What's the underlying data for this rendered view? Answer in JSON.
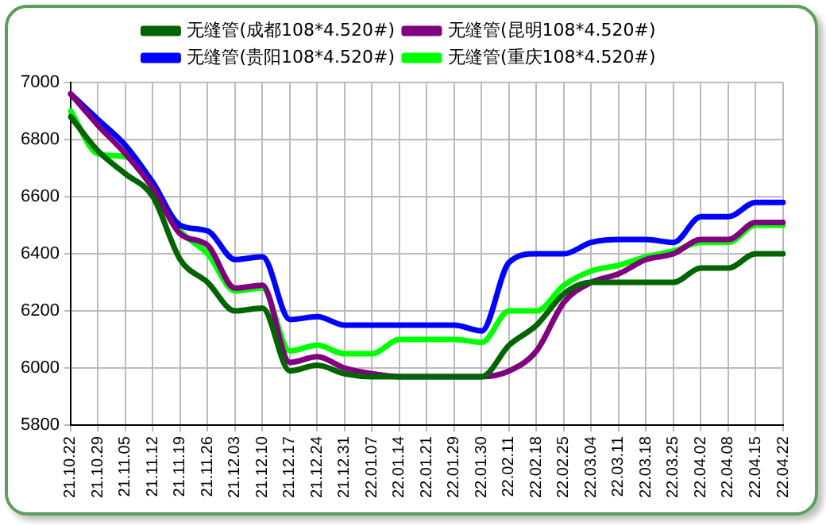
{
  "chart_data": {
    "type": "line",
    "categories": [
      "21.10.22",
      "21.10.29",
      "21.11.05",
      "21.11.12",
      "21.11.19",
      "21.11.26",
      "21.12.03",
      "21.12.10",
      "21.12.17",
      "21.12.24",
      "21.12.31",
      "22.01.07",
      "22.01.14",
      "22.01.21",
      "22.01.29",
      "22.01.30",
      "22.02.11",
      "22.02.18",
      "22.02.25",
      "22.03.04",
      "22.03.11",
      "22.03.18",
      "22.03.25",
      "22.04.02",
      "22.04.08",
      "22.04.15",
      "22.04.22"
    ],
    "series": [
      {
        "name": "无缝管(成都108*4.520#)",
        "color": "#006400",
        "values": [
          6880,
          6760,
          6680,
          6600,
          6380,
          6300,
          6200,
          6210,
          5990,
          6010,
          5980,
          5970,
          5970,
          5970,
          5970,
          5970,
          6080,
          6150,
          6260,
          6300,
          6300,
          6300,
          6300,
          6350,
          6350,
          6400,
          6400
        ]
      },
      {
        "name": "无缝管(昆明108*4.520#)",
        "color": "#800080",
        "values": [
          6960,
          6850,
          6750,
          6630,
          6470,
          6430,
          6280,
          6290,
          6020,
          6040,
          6000,
          5980,
          5970,
          5970,
          5970,
          5970,
          5990,
          6060,
          6230,
          6300,
          6330,
          6380,
          6400,
          6450,
          6450,
          6510,
          6510
        ]
      },
      {
        "name": "无缝管(贵阳108*4.520#)",
        "color": "#0000ff",
        "values": [
          6960,
          6870,
          6780,
          6650,
          6500,
          6480,
          6380,
          6390,
          6170,
          6180,
          6150,
          6150,
          6150,
          6150,
          6150,
          6130,
          6370,
          6400,
          6400,
          6440,
          6450,
          6450,
          6440,
          6530,
          6530,
          6580,
          6580
        ]
      },
      {
        "name": "无缝管(重庆108*4.520#)",
        "color": "#00ff00",
        "values": [
          6900,
          6750,
          6740,
          6630,
          6480,
          6400,
          6270,
          6280,
          6060,
          6080,
          6050,
          6050,
          6100,
          6100,
          6100,
          6090,
          6200,
          6200,
          6290,
          6340,
          6360,
          6390,
          6410,
          6440,
          6440,
          6500,
          6500
        ]
      }
    ],
    "ylim": [
      5800,
      7000
    ],
    "yticks": [
      5800,
      6000,
      6200,
      6400,
      6600,
      6800,
      7000
    ],
    "grid": true,
    "legend": "top",
    "marker": "none",
    "line_style": "solid"
  }
}
